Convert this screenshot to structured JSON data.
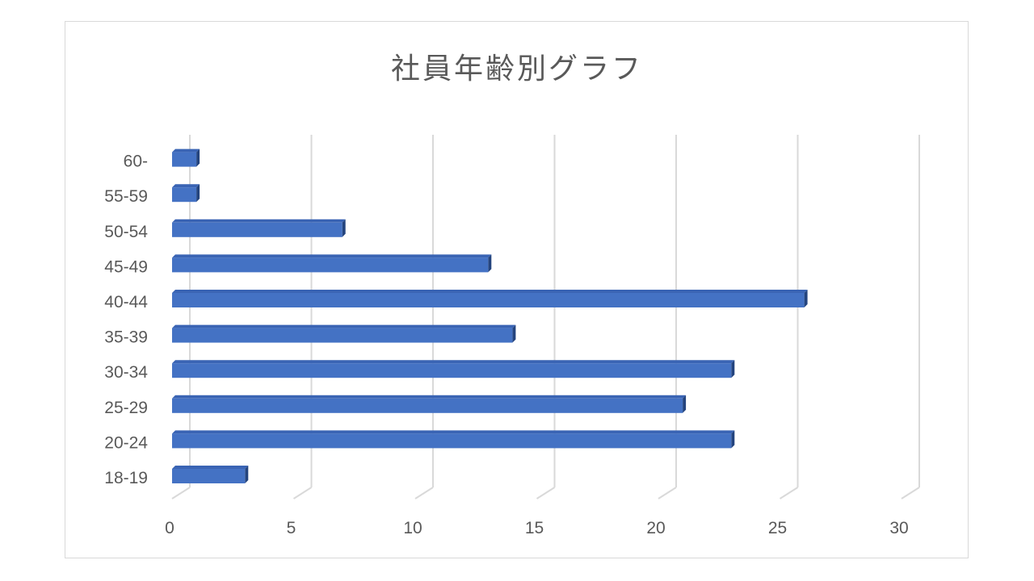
{
  "chart_data": {
    "type": "bar",
    "orientation": "horizontal",
    "style": "3d",
    "title": "社員年齢別グラフ",
    "categories": [
      "18-19",
      "20-24",
      "25-29",
      "30-34",
      "35-39",
      "40-44",
      "45-49",
      "50-54",
      "55-59",
      "60-"
    ],
    "values": [
      3,
      23,
      21,
      23,
      14,
      26,
      13,
      7,
      1,
      1
    ],
    "xlim": [
      0,
      30
    ],
    "xticks": [
      0,
      5,
      10,
      15,
      20,
      25,
      30
    ],
    "grid": true,
    "legend": "none",
    "colors": {
      "bar_front": "#4472c4",
      "bar_top": "#3a64b4",
      "bar_side": "#24447e",
      "grid": "#d9d9d9"
    }
  }
}
